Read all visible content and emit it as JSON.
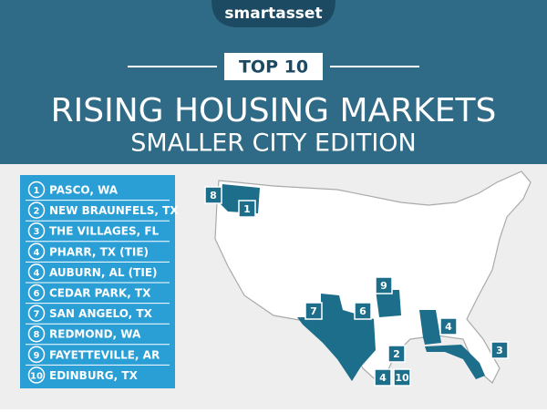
{
  "header": {
    "brand": "smartasset",
    "badge": "TOP 10",
    "title": "RISING HOUSING MARKETS",
    "subtitle": "SMALLER CITY EDITION"
  },
  "list": [
    {
      "rank": "1",
      "name": "PASCO, WA"
    },
    {
      "rank": "2",
      "name": "NEW BRAUNFELS, TX"
    },
    {
      "rank": "3",
      "name": "THE VILLAGES, FL"
    },
    {
      "rank": "4",
      "name": "PHARR, TX (TIE)"
    },
    {
      "rank": "4",
      "name": "AUBURN, AL (TIE)"
    },
    {
      "rank": "6",
      "name": "CEDAR PARK, TX"
    },
    {
      "rank": "7",
      "name": "SAN ANGELO, TX"
    },
    {
      "rank": "8",
      "name": "REDMOND, WA"
    },
    {
      "rank": "9",
      "name": "FAYETTEVILLE, AR"
    },
    {
      "rank": "10",
      "name": "EDINBURG, TX"
    }
  ],
  "map": {
    "markers": [
      "8",
      "1",
      "9",
      "7",
      "6",
      "2",
      "4",
      "3",
      "4",
      "10"
    ]
  }
}
